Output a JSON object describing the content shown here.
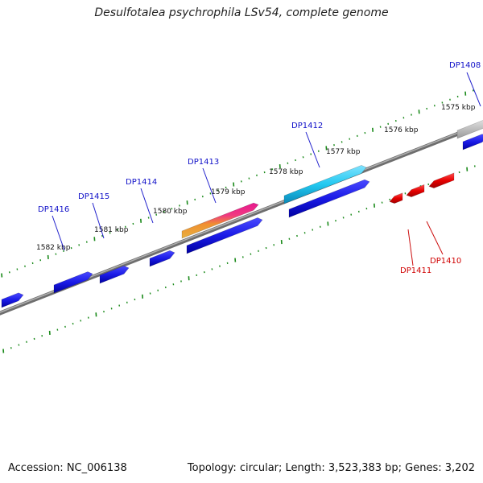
{
  "title": "Desulfotalea psychrophila LSv54, complete genome",
  "footer": {
    "accession": "Accession: NC_006138",
    "summary": "Topology: circular; Length: 3,523,383 bp; Genes: 3,202"
  },
  "tick_labels": [
    "1575 kbp",
    "1576 kbp",
    "1577 kbp",
    "1578 kbp",
    "1579 kbp",
    "1580 kbp",
    "1581 kbp",
    "1582 kbp"
  ],
  "forward_gene_labels": [
    "DP1408",
    "DP1412",
    "DP1413",
    "DP1414",
    "DP1415",
    "DP1416"
  ],
  "reverse_gene_labels": [
    "DP1410",
    "DP1411"
  ],
  "colors": {
    "forward_gene": "#1a1ae6",
    "reverse_gene": "#e60000",
    "backbone": "#808080",
    "ticks": "#1a8a1a",
    "cyan_feature": "#22c8f0",
    "rainbow_feature": "#f07830"
  }
}
